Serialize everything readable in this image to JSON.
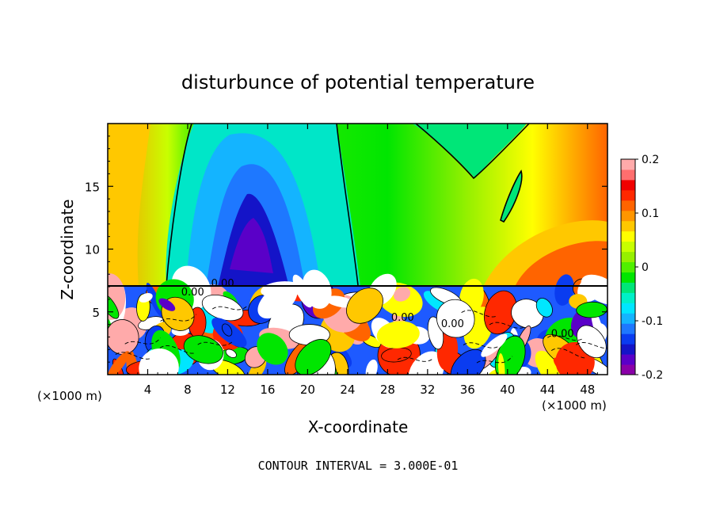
{
  "chart_data": {
    "type": "heatmap",
    "title": "disturbunce of potential temperature",
    "xlabel": "X-coordinate",
    "ylabel": "Z-coordinate",
    "x_unit_left": "(×1000 m)",
    "x_unit_right": "(×1000 m)",
    "xlim": [
      0,
      50
    ],
    "ylim": [
      0,
      20
    ],
    "x_ticks": [
      4,
      8,
      12,
      16,
      20,
      24,
      28,
      32,
      36,
      40,
      44,
      48
    ],
    "y_ticks": [
      5,
      10,
      15
    ],
    "footer": "CONTOUR INTERVAL = 3.000E-01",
    "colorbar": {
      "range": [
        -0.2,
        0.2
      ],
      "ticks": [
        {
          "value": 0.2,
          "label": "0.2"
        },
        {
          "value": 0.1,
          "label": "0.1"
        },
        {
          "value": 0.0,
          "label": "0"
        },
        {
          "value": -0.1,
          "label": "-0.1"
        },
        {
          "value": -0.2,
          "label": "-0.2"
        }
      ],
      "colors": [
        "#8a00a8",
        "#5a00c8",
        "#1414c8",
        "#0a3cf0",
        "#1e78ff",
        "#14b4ff",
        "#00e6ff",
        "#00f0c8",
        "#00e678",
        "#00e600",
        "#50f000",
        "#96f000",
        "#c8ff00",
        "#ffff00",
        "#ffc800",
        "#ff9600",
        "#ff6400",
        "#ff2800",
        "#f00000",
        "#ff6e6e",
        "#ffaaaa"
      ]
    },
    "contour_labels": [
      {
        "text": "0.00",
        "x": 8.5,
        "z": 6.3
      },
      {
        "text": "0.00",
        "x": 11.5,
        "z": 7.0
      },
      {
        "text": "0.00",
        "x": 29.5,
        "z": 4.3
      },
      {
        "text": "0.00",
        "x": 34.5,
        "z": 3.8
      },
      {
        "text": "0.00",
        "x": 45.5,
        "z": 3.0
      }
    ]
  }
}
